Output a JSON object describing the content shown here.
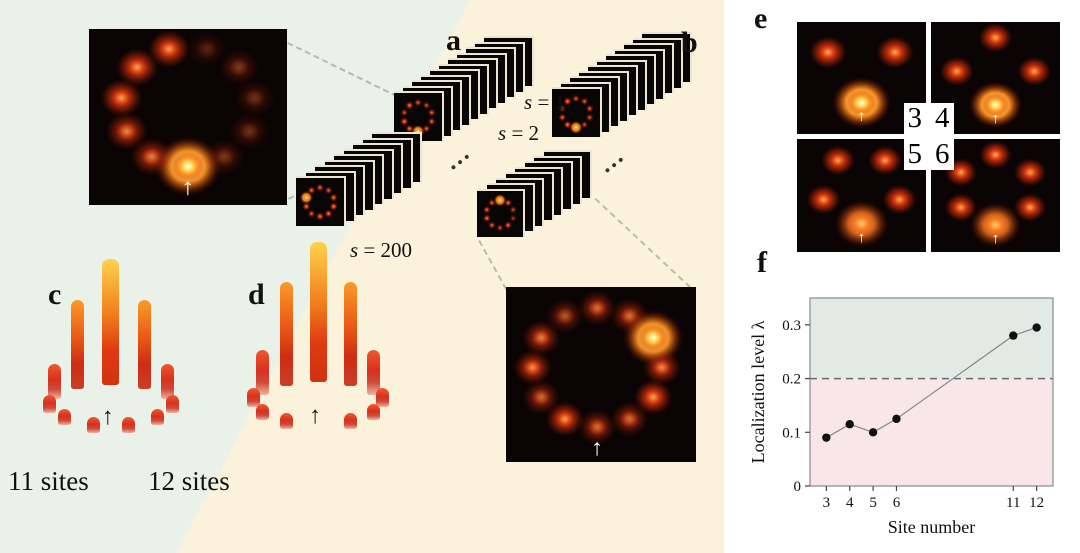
{
  "icons": {
    "arrow_up": "↑",
    "ellipsis": "…"
  },
  "panel_labels": {
    "a": "a",
    "b": "b",
    "c": "c",
    "d": "d",
    "e": "e",
    "f": "f"
  },
  "stacks": {
    "s_var": "s",
    "eq_1": " = 1",
    "eq_2": " = 2",
    "eq_200": " = 200"
  },
  "site_captions": {
    "c": "11 sites",
    "d": "12 sites"
  },
  "bar_charts": {
    "c_sites": 11,
    "d_sites": 12
  },
  "insets": {
    "a": {
      "sites": 11
    },
    "b": {
      "sites": 12
    }
  },
  "panel_e": {
    "cells": [
      {
        "label": "3",
        "sites": 3
      },
      {
        "label": "4",
        "sites": 4
      },
      {
        "label": "5",
        "sites": 5
      },
      {
        "label": "6",
        "sites": 6
      }
    ]
  },
  "chart_data": {
    "type": "scatter",
    "x": [
      3,
      4,
      5,
      6,
      11,
      12
    ],
    "values": [
      0.09,
      0.115,
      0.1,
      0.125,
      0.28,
      0.295
    ],
    "xlabel": "Site number",
    "ylabel": "Localization level λ",
    "xticks": [
      3,
      4,
      5,
      6,
      11,
      12
    ],
    "yticks": [
      0,
      0.1,
      0.2,
      0.3
    ],
    "xlim": [
      2.3,
      12.7
    ],
    "ylim": [
      0,
      0.35
    ],
    "threshold": 0.2,
    "grid": false,
    "colors": {
      "above": "#e2eae5",
      "below": "#f8e6e9",
      "point": "#111111",
      "line": "#8a8a8a",
      "dashed": "#5f6f6f",
      "axis": "#8a8a8a"
    }
  }
}
